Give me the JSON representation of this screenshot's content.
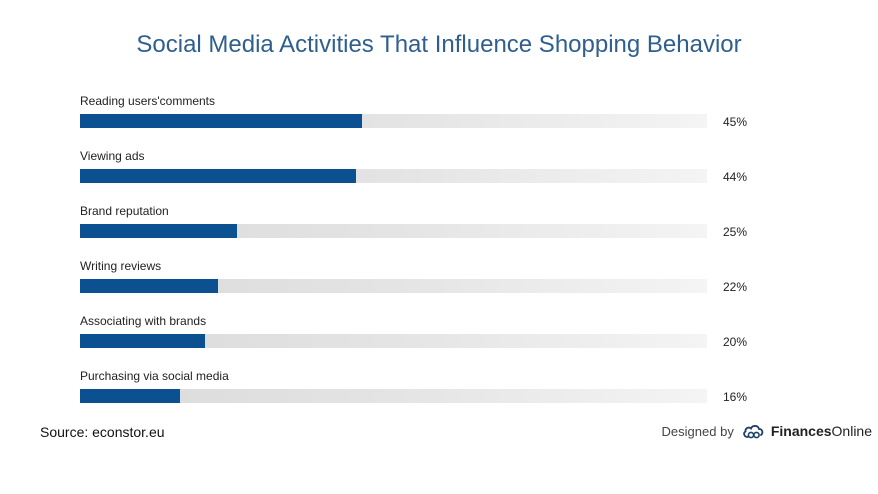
{
  "chart_data": {
    "type": "bar",
    "orientation": "horizontal",
    "title": "Social Media Activities That Influence Shopping Behavior",
    "categories": [
      "Reading users'comments",
      "Viewing ads",
      "Brand reputation",
      "Writing reviews",
      "Associating with brands",
      "Purchasing via social media"
    ],
    "values": [
      45,
      44,
      25,
      22,
      20,
      16
    ],
    "value_labels": [
      "45%",
      "44%",
      "25%",
      "22%",
      "20%",
      "16%"
    ],
    "xlim": [
      0,
      100
    ],
    "unit": "%",
    "bar_color": "#0b5091",
    "track_color": "#e4e4e4",
    "grid": false,
    "legend": "none"
  },
  "footer": {
    "source": "Source: econstor.eu",
    "designed_by": "Designed by",
    "brand_bold": "Finances",
    "brand_rest": "Online"
  },
  "colors": {
    "title": "#2f5f8f",
    "accent": "#0b5091"
  }
}
